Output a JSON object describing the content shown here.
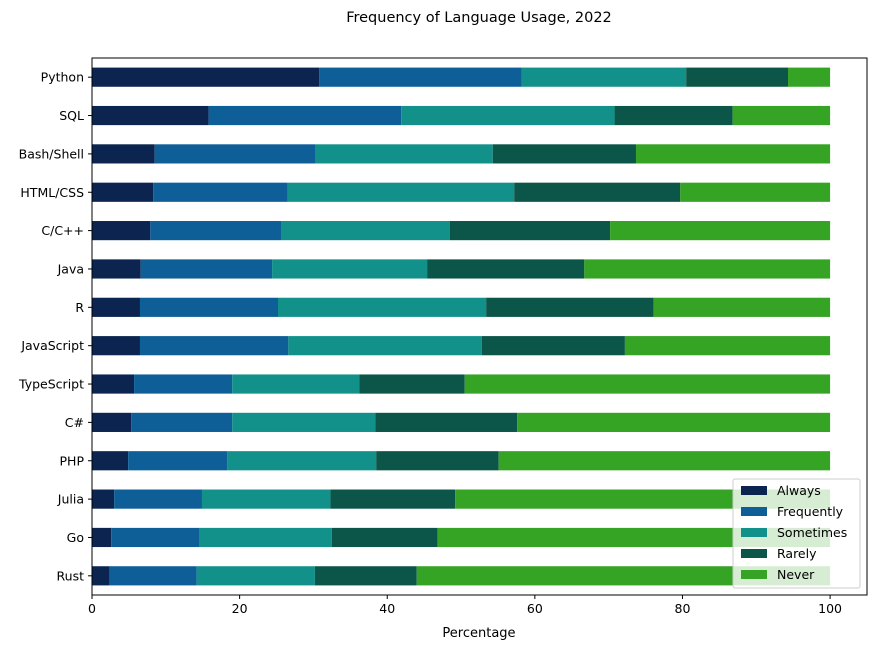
{
  "chart_data": {
    "type": "bar",
    "orientation": "horizontal",
    "stacked": true,
    "title": "Frequency of Language Usage, 2022",
    "xlabel": "Percentage",
    "ylabel": "",
    "xlim": [
      0,
      105
    ],
    "xticks": [
      0,
      20,
      40,
      60,
      80,
      100
    ],
    "grid": false,
    "legend_position": "lower-right",
    "categories": [
      "Python",
      "SQL",
      "Bash/Shell",
      "HTML/CSS",
      "C/C++",
      "Java",
      "R",
      "JavaScript",
      "TypeScript",
      "C#",
      "PHP",
      "Julia",
      "Go",
      "Rust"
    ],
    "series": [
      {
        "name": "Always",
        "color": "#0c2550",
        "values": [
          30.8,
          15.8,
          8.5,
          8.3,
          7.9,
          6.6,
          6.5,
          6.5,
          5.7,
          5.3,
          4.9,
          3.0,
          2.6,
          2.4
        ]
      },
      {
        "name": "Frequently",
        "color": "#0e5f98",
        "values": [
          27.4,
          26.1,
          21.8,
          18.2,
          17.8,
          17.8,
          18.7,
          20.1,
          13.3,
          13.7,
          13.4,
          11.9,
          12.0,
          11.8
        ]
      },
      {
        "name": "Sometimes",
        "color": "#12918a",
        "values": [
          22.3,
          28.9,
          24.0,
          30.7,
          22.8,
          21.0,
          28.2,
          26.2,
          17.2,
          19.4,
          20.2,
          17.4,
          17.9,
          16.0
        ]
      },
      {
        "name": "Rarely",
        "color": "#0b5648",
        "values": [
          13.8,
          16.0,
          19.4,
          22.5,
          21.7,
          21.3,
          22.7,
          19.4,
          14.3,
          19.2,
          16.6,
          16.9,
          14.3,
          13.8
        ]
      },
      {
        "name": "Never",
        "color": "#35a323",
        "values": [
          5.7,
          13.2,
          26.3,
          20.3,
          29.8,
          33.3,
          23.9,
          27.8,
          49.5,
          42.4,
          44.9,
          50.8,
          53.2,
          56.0
        ]
      }
    ]
  }
}
